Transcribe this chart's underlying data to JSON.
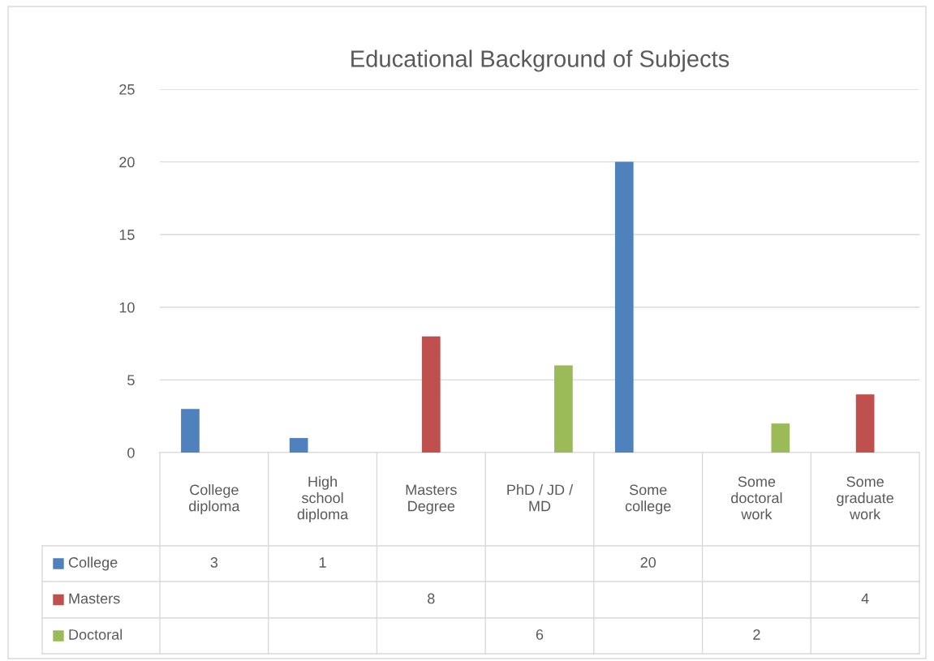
{
  "chart_data": {
    "type": "bar",
    "title": "Educational Background of Subjects",
    "categories": [
      "College diploma",
      "High school diploma",
      "Masters Degree",
      "PhD / JD / MD",
      "Some college",
      "Some doctoral work",
      "Some graduate work"
    ],
    "series": [
      {
        "name": "College",
        "color": "#4f81bd",
        "values": [
          3,
          1,
          null,
          null,
          20,
          null,
          null
        ]
      },
      {
        "name": "Masters",
        "color": "#c0504d",
        "values": [
          null,
          null,
          8,
          null,
          null,
          null,
          4
        ]
      },
      {
        "name": "Doctoral",
        "color": "#9bbb59",
        "values": [
          null,
          null,
          null,
          6,
          null,
          2,
          null
        ]
      }
    ],
    "ylim": [
      0,
      25
    ],
    "yticks": [
      0,
      5,
      10,
      15,
      20,
      25
    ],
    "grid": "y",
    "legend": "bottom",
    "data_labels": true
  }
}
